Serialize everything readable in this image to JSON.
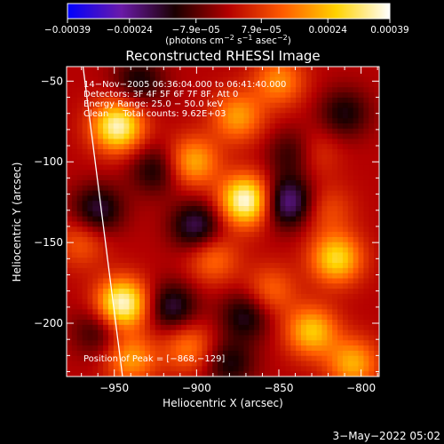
{
  "chart_data": {
    "type": "heatmap",
    "title": "Reconstructed RHESSI Image",
    "xlabel": "Heliocentric X (arcsec)",
    "ylabel": "Heliocentric Y (arcsec)",
    "xlim": [
      -979,
      -789
    ],
    "ylim": [
      -233,
      -41
    ],
    "xticks": [
      -950,
      -900,
      -850,
      -800
    ],
    "xtick_labels": [
      "−950",
      "−900",
      "−850",
      "−800"
    ],
    "yticks": [
      -50,
      -100,
      -150,
      -200
    ],
    "ytick_labels": [
      "−50",
      "−100",
      "−150",
      "−200"
    ],
    "colorbar": {
      "range": [
        -0.00039,
        0.00039
      ],
      "ticks": [
        -0.00039,
        -0.00024,
        -7.9e-05,
        7.9e-05,
        0.00024,
        0.00039
      ],
      "tick_labels": [
        "−0.00039",
        "−0.00024",
        "−7.9e−05",
        "7.9e−05",
        "0.00024",
        "0.00039"
      ],
      "unit_label_parts": {
        "base": "(photons cm",
        "exp1": "−2",
        "mid1": " s",
        "exp2": "−1",
        "mid2": " asec",
        "exp3": "−2",
        "end": ")"
      },
      "colors": [
        "#0000ff",
        "#6a1aa8",
        "#1a0000",
        "#b40000",
        "#ff5a00",
        "#ffd200",
        "#ffffff"
      ]
    },
    "annotations": [
      "14−Nov−2005 06:36:04.000 to 06:41:40.000",
      "Detectors: 3F 4F 5F 6F 7F 8F, Att 0",
      "Energy Range: 25.0 − 50.0 keV",
      "Clean     Total counts: 9.62E+03"
    ],
    "peak_label": "Position of Peak = [−868,−129]",
    "peak": [
      -868,
      -129
    ],
    "limb_line": [
      [
        -969,
        -41
      ],
      [
        -945,
        -233
      ]
    ],
    "sources": [
      {
        "x": -948,
        "y": -78,
        "value": 0.00036
      },
      {
        "x": -870,
        "y": -124,
        "value": 0.00039
      },
      {
        "x": -945,
        "y": -188,
        "value": 0.00038
      },
      {
        "x": -902,
        "y": -100,
        "value": 0.00022
      },
      {
        "x": -875,
        "y": -72,
        "value": 0.0002
      },
      {
        "x": -815,
        "y": -160,
        "value": 0.00028
      },
      {
        "x": -830,
        "y": -205,
        "value": 0.00025
      },
      {
        "x": -940,
        "y": -222,
        "value": 0.0002
      },
      {
        "x": -805,
        "y": -225,
        "value": 0.00022
      },
      {
        "x": -850,
        "y": -50,
        "value": 0.00018
      },
      {
        "x": -890,
        "y": -160,
        "value": 0.00015
      },
      {
        "x": -855,
        "y": -180,
        "value": 0.00014
      },
      {
        "x": -905,
        "y": -215,
        "value": 0.00016
      },
      {
        "x": -970,
        "y": -150,
        "value": 0.00012
      },
      {
        "x": -830,
        "y": -95,
        "value": 0.00012
      },
      {
        "x": -820,
        "y": -130,
        "value": 0.0001
      },
      {
        "x": -845,
        "y": -125,
        "value": -0.00025
      },
      {
        "x": -900,
        "y": -140,
        "value": -0.0002
      },
      {
        "x": -960,
        "y": -130,
        "value": -0.00018
      },
      {
        "x": -915,
        "y": -190,
        "value": -0.00018
      },
      {
        "x": -870,
        "y": -195,
        "value": -0.00016
      },
      {
        "x": -840,
        "y": -95,
        "value": -0.00016
      },
      {
        "x": -935,
        "y": -50,
        "value": -0.00014
      },
      {
        "x": -810,
        "y": -70,
        "value": -0.00014
      },
      {
        "x": -880,
        "y": -225,
        "value": -0.00014
      },
      {
        "x": -925,
        "y": -105,
        "value": -0.00014
      },
      {
        "x": -960,
        "y": -205,
        "value": -0.00012
      }
    ]
  },
  "footer": {
    "timestamp": "3−May−2022 05:02"
  }
}
